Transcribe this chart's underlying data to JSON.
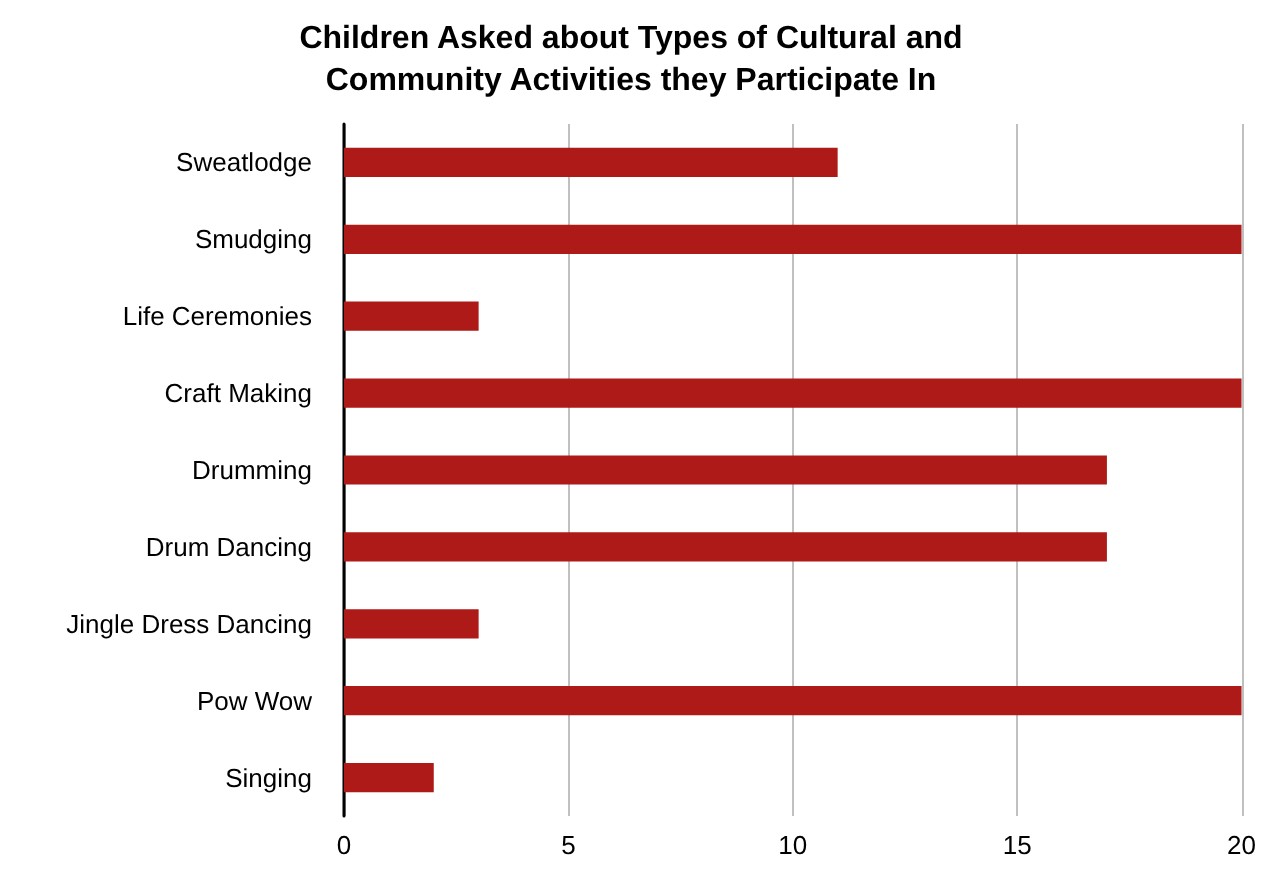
{
  "chart_data": {
    "type": "bar",
    "orientation": "horizontal",
    "title": "Children Asked about Types of Cultural and\nCommunity Activities they Participate In",
    "categories": [
      "Sweatlodge",
      "Smudging",
      "Life Ceremonies",
      "Craft Making",
      "Drumming",
      "Drum Dancing",
      "Jingle Dress Dancing",
      "Pow Wow",
      "Singing"
    ],
    "values": [
      11,
      20,
      3,
      20,
      17,
      17,
      3,
      20,
      2
    ],
    "color": "#ad1a17",
    "xlim": [
      0,
      20
    ],
    "xticks": [
      0,
      5,
      10,
      15,
      20
    ],
    "grid": "x"
  }
}
